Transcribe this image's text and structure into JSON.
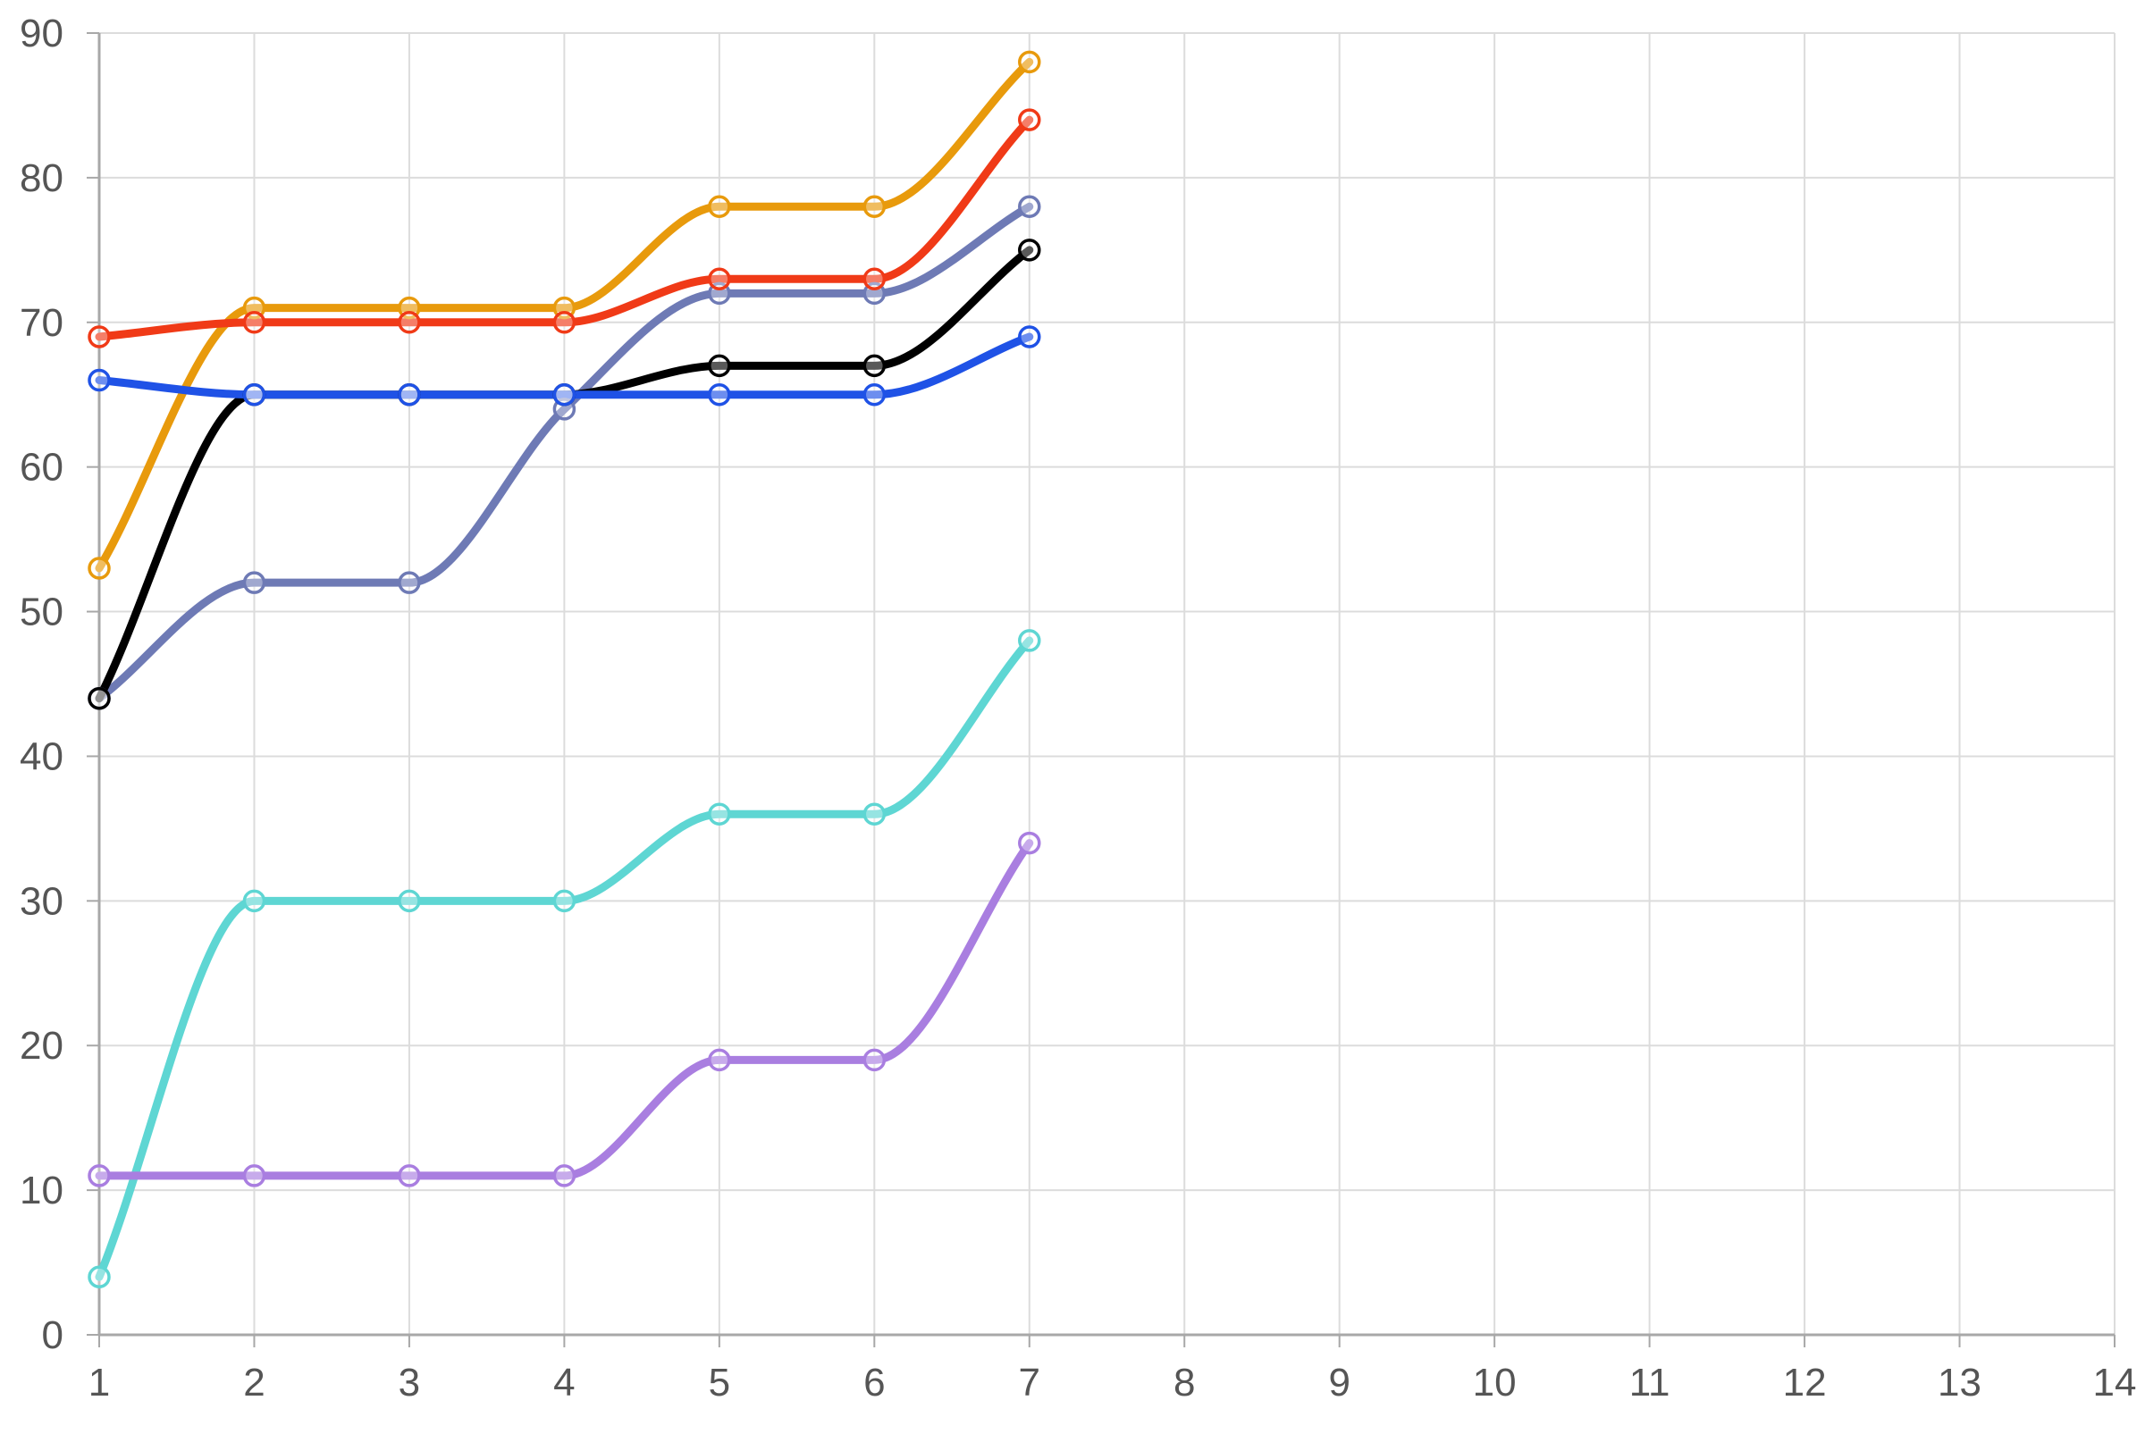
{
  "chart_data": {
    "type": "line",
    "title": "",
    "xlabel": "",
    "ylabel": "",
    "x": [
      1,
      2,
      3,
      4,
      5,
      6,
      7
    ],
    "xlim": [
      1,
      14
    ],
    "ylim": [
      0,
      90
    ],
    "x_ticks": [
      "1",
      "2",
      "3",
      "4",
      "5",
      "6",
      "7",
      "8",
      "9",
      "10",
      "11",
      "12",
      "13",
      "14"
    ],
    "y_ticks": [
      "0",
      "10",
      "20",
      "30",
      "40",
      "50",
      "60",
      "70",
      "80",
      "90"
    ],
    "grid": true,
    "smooth": true,
    "series": [
      {
        "color": "#6e7ab5",
        "values": [
          44,
          52,
          52,
          64,
          72,
          72,
          78
        ]
      },
      {
        "color": "#e89a0c",
        "values": [
          53,
          71,
          71,
          71,
          78,
          78,
          88
        ]
      },
      {
        "color": "#f03a17",
        "values": [
          69,
          70,
          70,
          70,
          73,
          73,
          84
        ]
      },
      {
        "color": "#000000",
        "values": [
          44,
          65,
          65,
          65,
          67,
          67,
          75
        ]
      },
      {
        "color": "#1f52e6",
        "values": [
          66,
          65,
          65,
          65,
          65,
          65,
          69
        ]
      },
      {
        "color": "#5ed6d3",
        "values": [
          4,
          30,
          30,
          30,
          36,
          36,
          48
        ]
      },
      {
        "color": "#a97ee0",
        "values": [
          11,
          11,
          11,
          11,
          19,
          19,
          34
        ]
      }
    ]
  }
}
